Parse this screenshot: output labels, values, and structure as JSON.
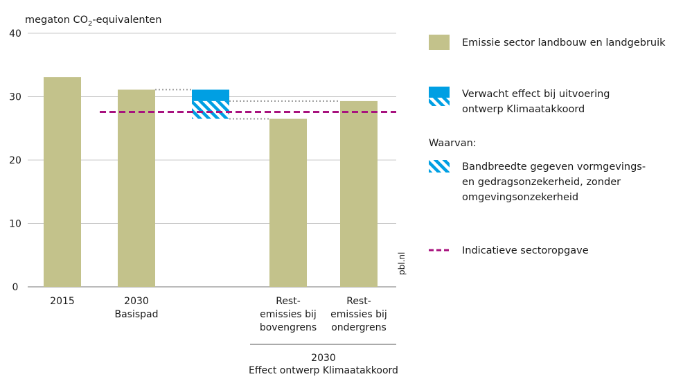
{
  "chart_data": {
    "type": "bar",
    "ylabel_prefix": "megaton CO",
    "ylabel_sub": "2",
    "ylabel_suffix": "-equivalenten",
    "ylim": [
      0,
      40
    ],
    "yticks": [
      0,
      10,
      20,
      30,
      40
    ],
    "grid": true,
    "categories": [
      {
        "lines": [
          "2015"
        ]
      },
      {
        "lines": [
          "2030",
          "Basispad"
        ]
      },
      {
        "lines": []
      },
      {
        "lines": [
          "Rest-",
          "emissies bij",
          "bovengrens"
        ]
      },
      {
        "lines": [
          "Rest-",
          "emissies bij",
          "ondergrens"
        ]
      }
    ],
    "bars": [
      33.1,
      31.1,
      null,
      26.5,
      29.3
    ],
    "effect_range": {
      "top": 31.1,
      "solid_bottom": 29.3,
      "hatched_bottom": 26.5
    },
    "target_line": 27.6,
    "group_label": [
      "2030",
      "Effect ontwerp Klimaatakkoord"
    ],
    "watermark": "pbl.nl",
    "legend": {
      "placement": "right",
      "items": [
        {
          "key": "bar",
          "lines": [
            "Emissie sector landbouw en landgebruik"
          ]
        },
        {
          "key": "effect",
          "lines": [
            "Verwacht effect bij uitvoering",
            "ontwerp Klimaatakkoord"
          ]
        },
        {
          "key": "header",
          "lines": [
            "Waarvan:"
          ]
        },
        {
          "key": "hatch",
          "lines": [
            "Bandbreedte gegeven vormgevings-",
            "en gedragsonzekerheid, zonder",
            "omgevingsonzekerheid"
          ]
        },
        {
          "key": "target",
          "lines": [
            "Indicatieve sectoropgave"
          ]
        }
      ]
    },
    "colors": {
      "bar": "#c3c28b",
      "effect": "#009fe3",
      "target": "#a8127e",
      "grid": "#c8c8c8",
      "connector": "#9a9a9a",
      "text": "#1a1a1a"
    }
  }
}
